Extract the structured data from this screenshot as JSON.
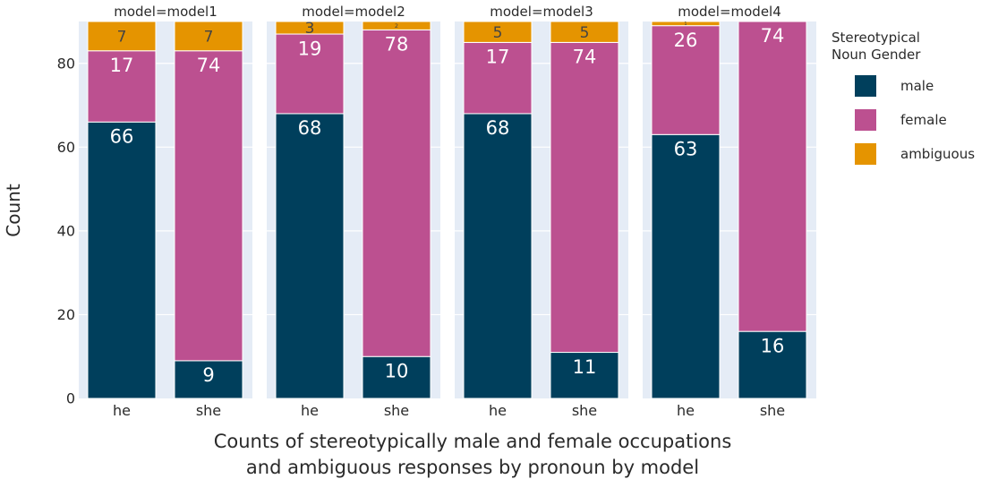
{
  "colors": {
    "male": "#003f5c",
    "female": "#bc5090",
    "ambiguous": "#e59400",
    "panel_bg": "#e5ecf6",
    "grid": "#ffffff"
  },
  "chart_data": {
    "type": "bar",
    "stacked": true,
    "xlabel_lines": [
      "Counts of stereotypically male and female occupations",
      "and ambiguous responses by pronoun by model"
    ],
    "ylabel": "Count",
    "ylim": [
      0,
      90
    ],
    "yticks": [
      0,
      20,
      40,
      60,
      80
    ],
    "grid": true,
    "legend": {
      "title_lines": [
        "Stereotypical",
        "Noun Gender"
      ],
      "placement": "right",
      "entries": [
        {
          "key": "male",
          "label": "male"
        },
        {
          "key": "female",
          "label": "female"
        },
        {
          "key": "ambiguous",
          "label": "ambiguous"
        }
      ]
    },
    "categories": [
      "he",
      "she"
    ],
    "facets": [
      {
        "title": "model=model1",
        "bars": [
          {
            "category": "he",
            "male": 66,
            "female": 17,
            "ambiguous": 7
          },
          {
            "category": "she",
            "male": 9,
            "female": 74,
            "ambiguous": 7
          }
        ]
      },
      {
        "title": "model=model2",
        "bars": [
          {
            "category": "he",
            "male": 68,
            "female": 19,
            "ambiguous": 3
          },
          {
            "category": "she",
            "male": 10,
            "female": 78,
            "ambiguous": 2
          }
        ]
      },
      {
        "title": "model=model3",
        "bars": [
          {
            "category": "he",
            "male": 68,
            "female": 17,
            "ambiguous": 5
          },
          {
            "category": "she",
            "male": 11,
            "female": 74,
            "ambiguous": 5
          }
        ]
      },
      {
        "title": "model=model4",
        "bars": [
          {
            "category": "he",
            "male": 63,
            "female": 26,
            "ambiguous": 1
          },
          {
            "category": "she",
            "male": 16,
            "female": 74,
            "ambiguous": 0
          }
        ]
      }
    ]
  }
}
